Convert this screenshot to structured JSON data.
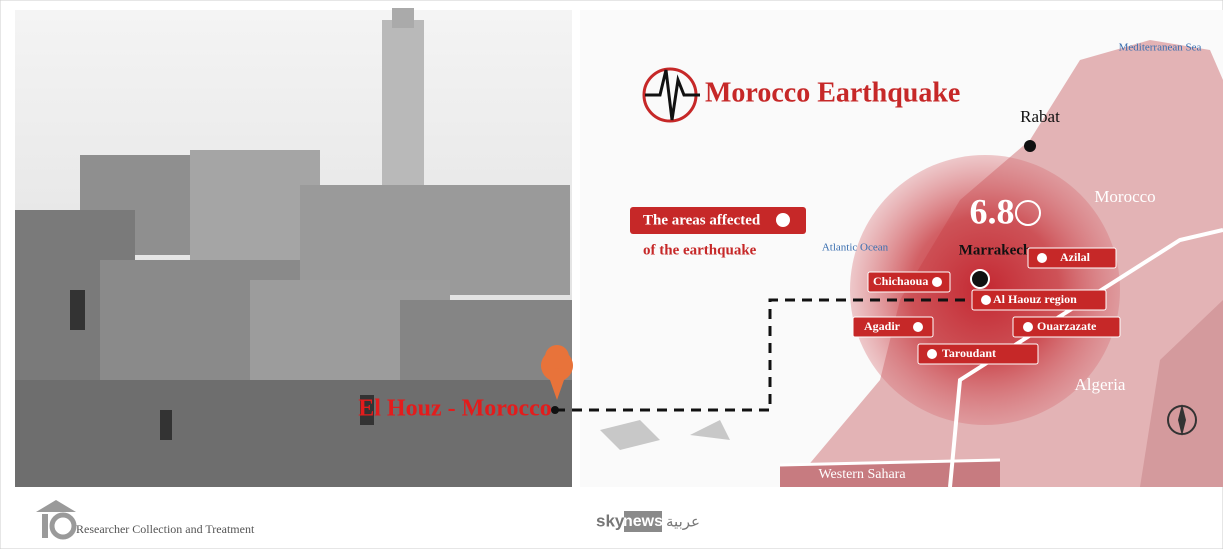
{
  "title": "Morocco Earthquake",
  "photo_caption": "El Houz - Morocco",
  "legend": {
    "line1": "The areas affected",
    "line2": "of the earthquake"
  },
  "magnitude": 6.8,
  "cities": [
    "Rabat",
    "Marrakech"
  ],
  "regions": [
    "Azilal",
    "Chichaoua",
    "Al Haouz region",
    "Agadir",
    "Ouarzazate",
    "Taroudant"
  ],
  "seas": [
    "Mediterranean Sea",
    "Atlantic Ocean"
  ],
  "countries": [
    "Morocco",
    "Algeria",
    "Western Sahara"
  ],
  "footer": {
    "credit": "Researcher  Collection and Treatment",
    "logo_sky": "sky",
    "logo_news": "news",
    "logo_arabic": "عربية"
  }
}
